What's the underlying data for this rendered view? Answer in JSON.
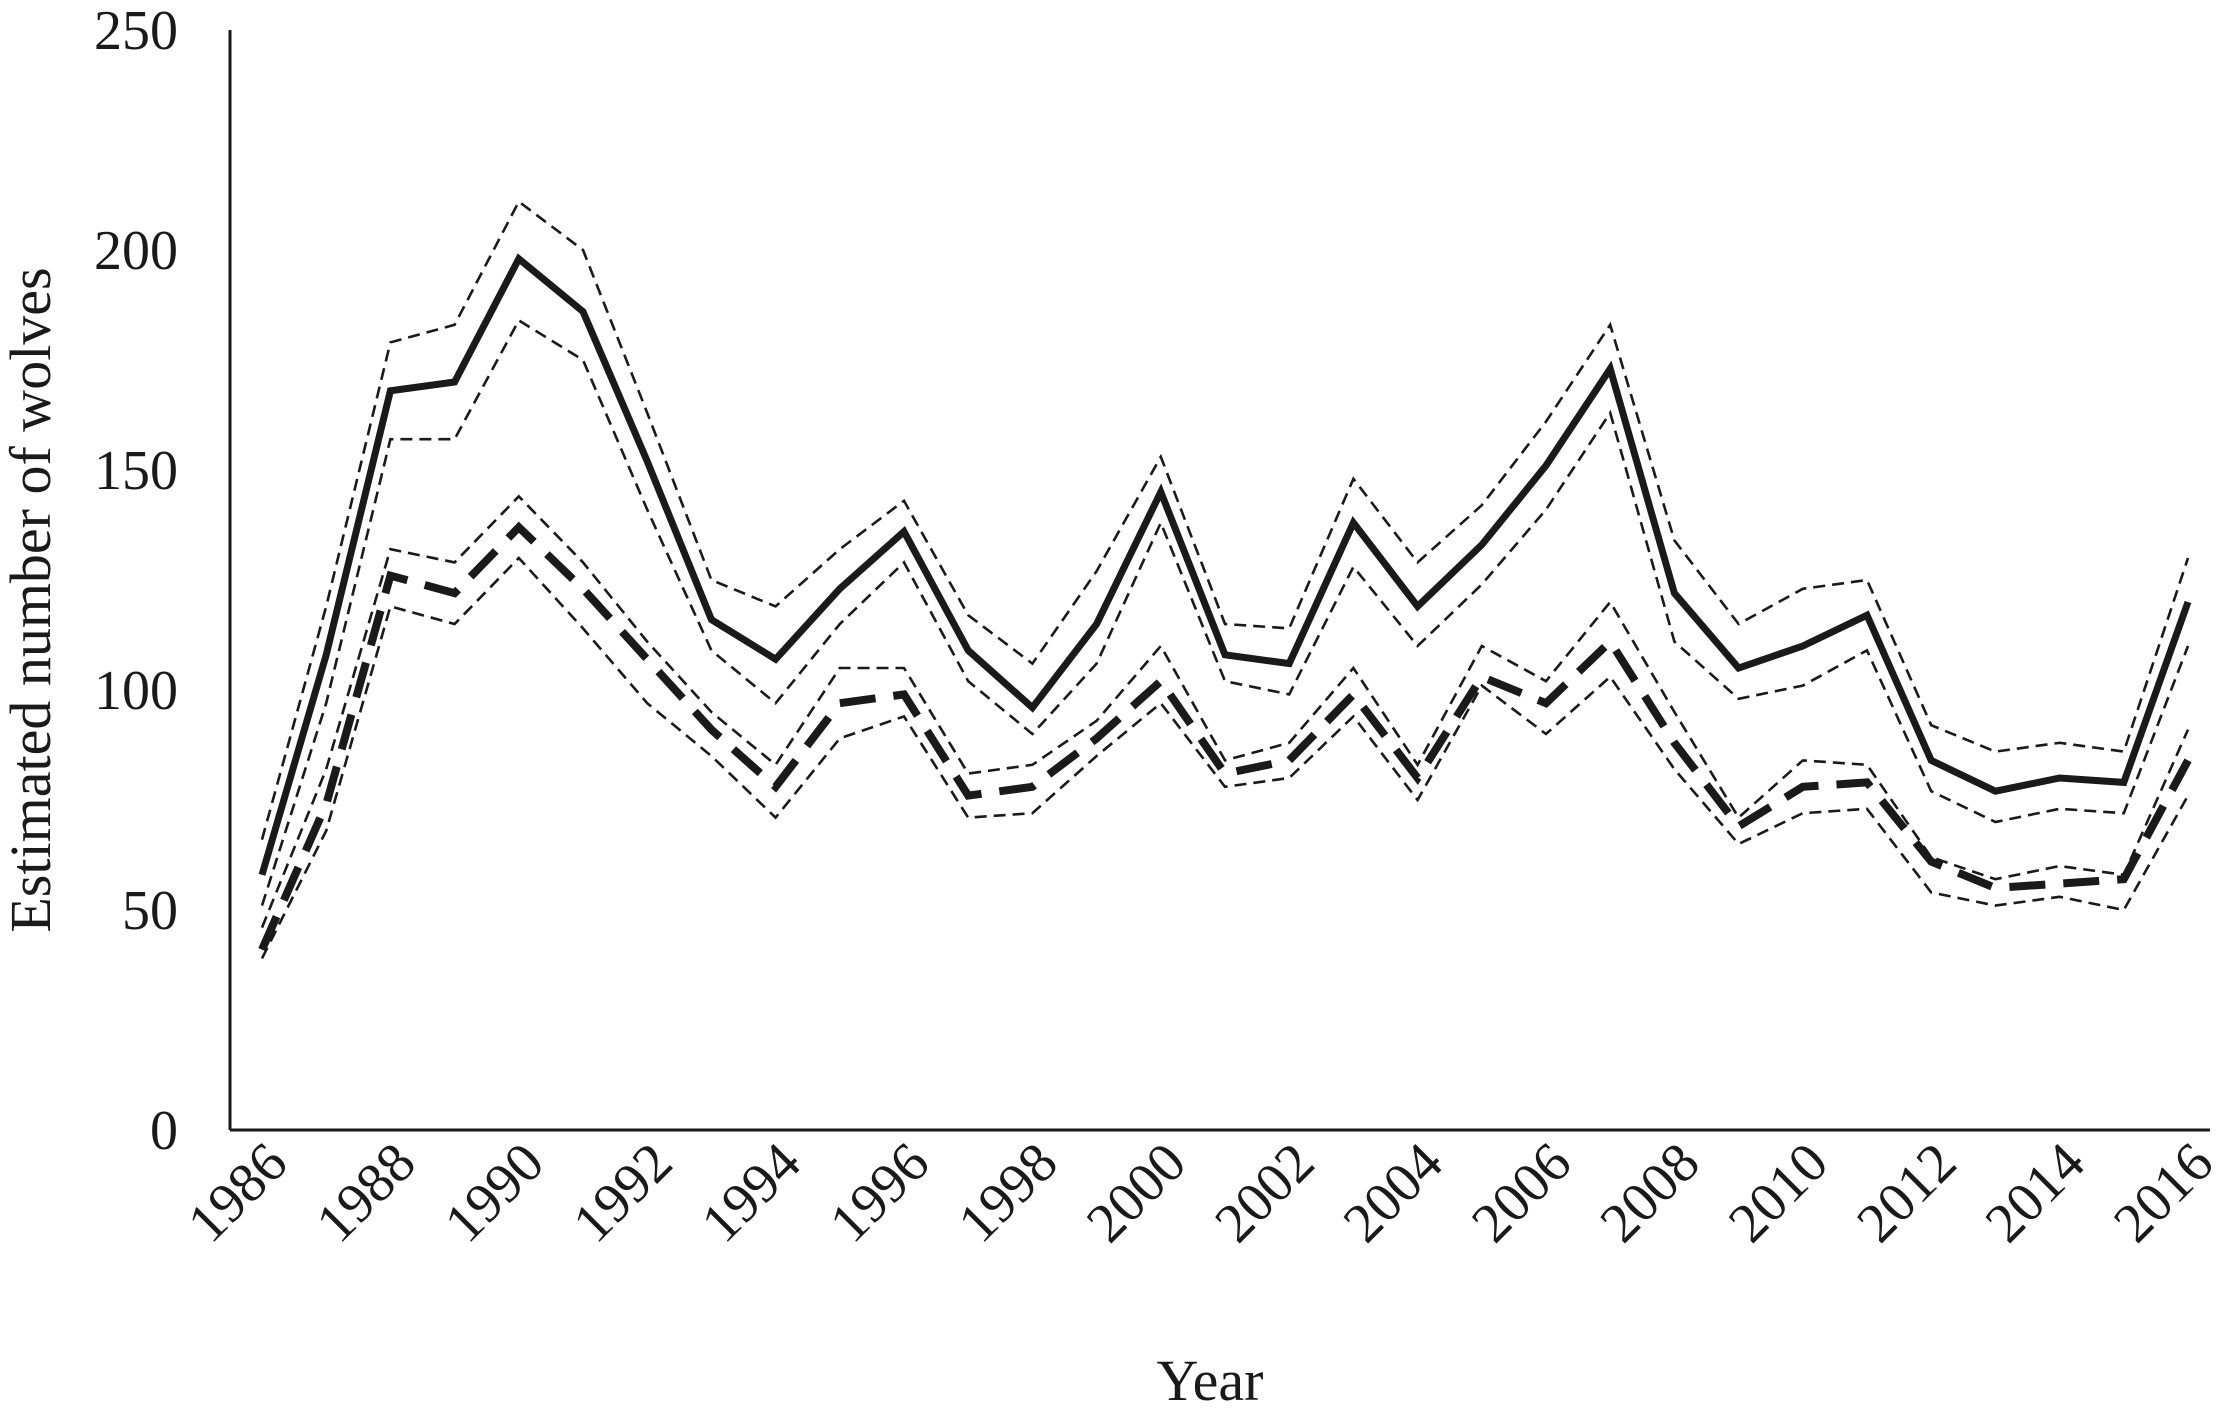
{
  "chart_data": {
    "type": "line",
    "title": "",
    "xlabel": "Year",
    "ylabel": "Estimated number of wolves",
    "ylim": [
      0,
      250
    ],
    "yticks": [
      "0",
      "50",
      "100",
      "150",
      "200",
      "250"
    ],
    "xlim": [
      1986,
      2016
    ],
    "xticks": [
      "1986",
      "1988",
      "1990",
      "1992",
      "1994",
      "1996",
      "1998",
      "2000",
      "2002",
      "2004",
      "2006",
      "2008",
      "2010",
      "2012",
      "2014",
      "2016"
    ],
    "grid": false,
    "legend": "none",
    "x": [
      1986,
      1987,
      1988,
      1989,
      1990,
      1991,
      1992,
      1993,
      1994,
      1995,
      1996,
      1997,
      1998,
      1999,
      2000,
      2001,
      2002,
      2003,
      2004,
      2005,
      2006,
      2007,
      2008,
      2009,
      2010,
      2011,
      2012,
      2013,
      2014,
      2015,
      2016
    ],
    "series": [
      {
        "style": "solid-thick",
        "values": [
          58,
          108,
          168,
          170,
          198,
          186,
          152,
          116,
          107,
          123,
          136,
          109,
          96,
          115,
          145,
          108,
          106,
          138,
          119,
          133,
          151,
          173,
          122,
          105,
          110,
          117,
          84,
          77,
          80,
          79,
          120
        ]
      },
      {
        "style": "dashed-thin",
        "values": [
          66,
          119,
          179,
          183,
          211,
          200,
          163,
          125,
          119,
          132,
          143,
          117,
          106,
          127,
          153,
          115,
          114,
          148,
          129,
          142,
          161,
          183,
          134,
          115,
          123,
          125,
          92,
          86,
          88,
          86,
          130
        ]
      },
      {
        "style": "dashed-thin",
        "values": [
          51,
          97,
          157,
          157,
          184,
          175,
          141,
          109,
          97,
          115,
          129,
          102,
          90,
          106,
          138,
          102,
          99,
          128,
          110,
          124,
          141,
          163,
          111,
          98,
          101,
          109,
          77,
          70,
          73,
          72,
          110
        ]
      },
      {
        "style": "dashed-thick",
        "values": [
          41,
          74,
          126,
          122,
          137,
          123,
          107,
          91,
          78,
          97,
          99,
          76,
          78,
          89,
          102,
          81,
          84,
          99,
          80,
          103,
          97,
          111,
          88,
          69,
          78,
          79,
          61,
          55,
          56,
          57,
          84
        ]
      },
      {
        "style": "dashed-thin",
        "values": [
          46,
          82,
          132,
          129,
          144,
          129,
          111,
          95,
          83,
          105,
          105,
          81,
          83,
          93,
          110,
          84,
          88,
          105,
          83,
          110,
          102,
          120,
          95,
          71,
          84,
          83,
          62,
          57,
          60,
          58,
          91
        ]
      },
      {
        "style": "dashed-thin",
        "values": [
          39,
          68,
          119,
          115,
          130,
          114,
          97,
          85,
          71,
          89,
          94,
          71,
          72,
          85,
          97,
          78,
          80,
          94,
          75,
          101,
          90,
          103,
          82,
          65,
          72,
          73,
          54,
          51,
          53,
          50,
          76
        ]
      }
    ]
  }
}
